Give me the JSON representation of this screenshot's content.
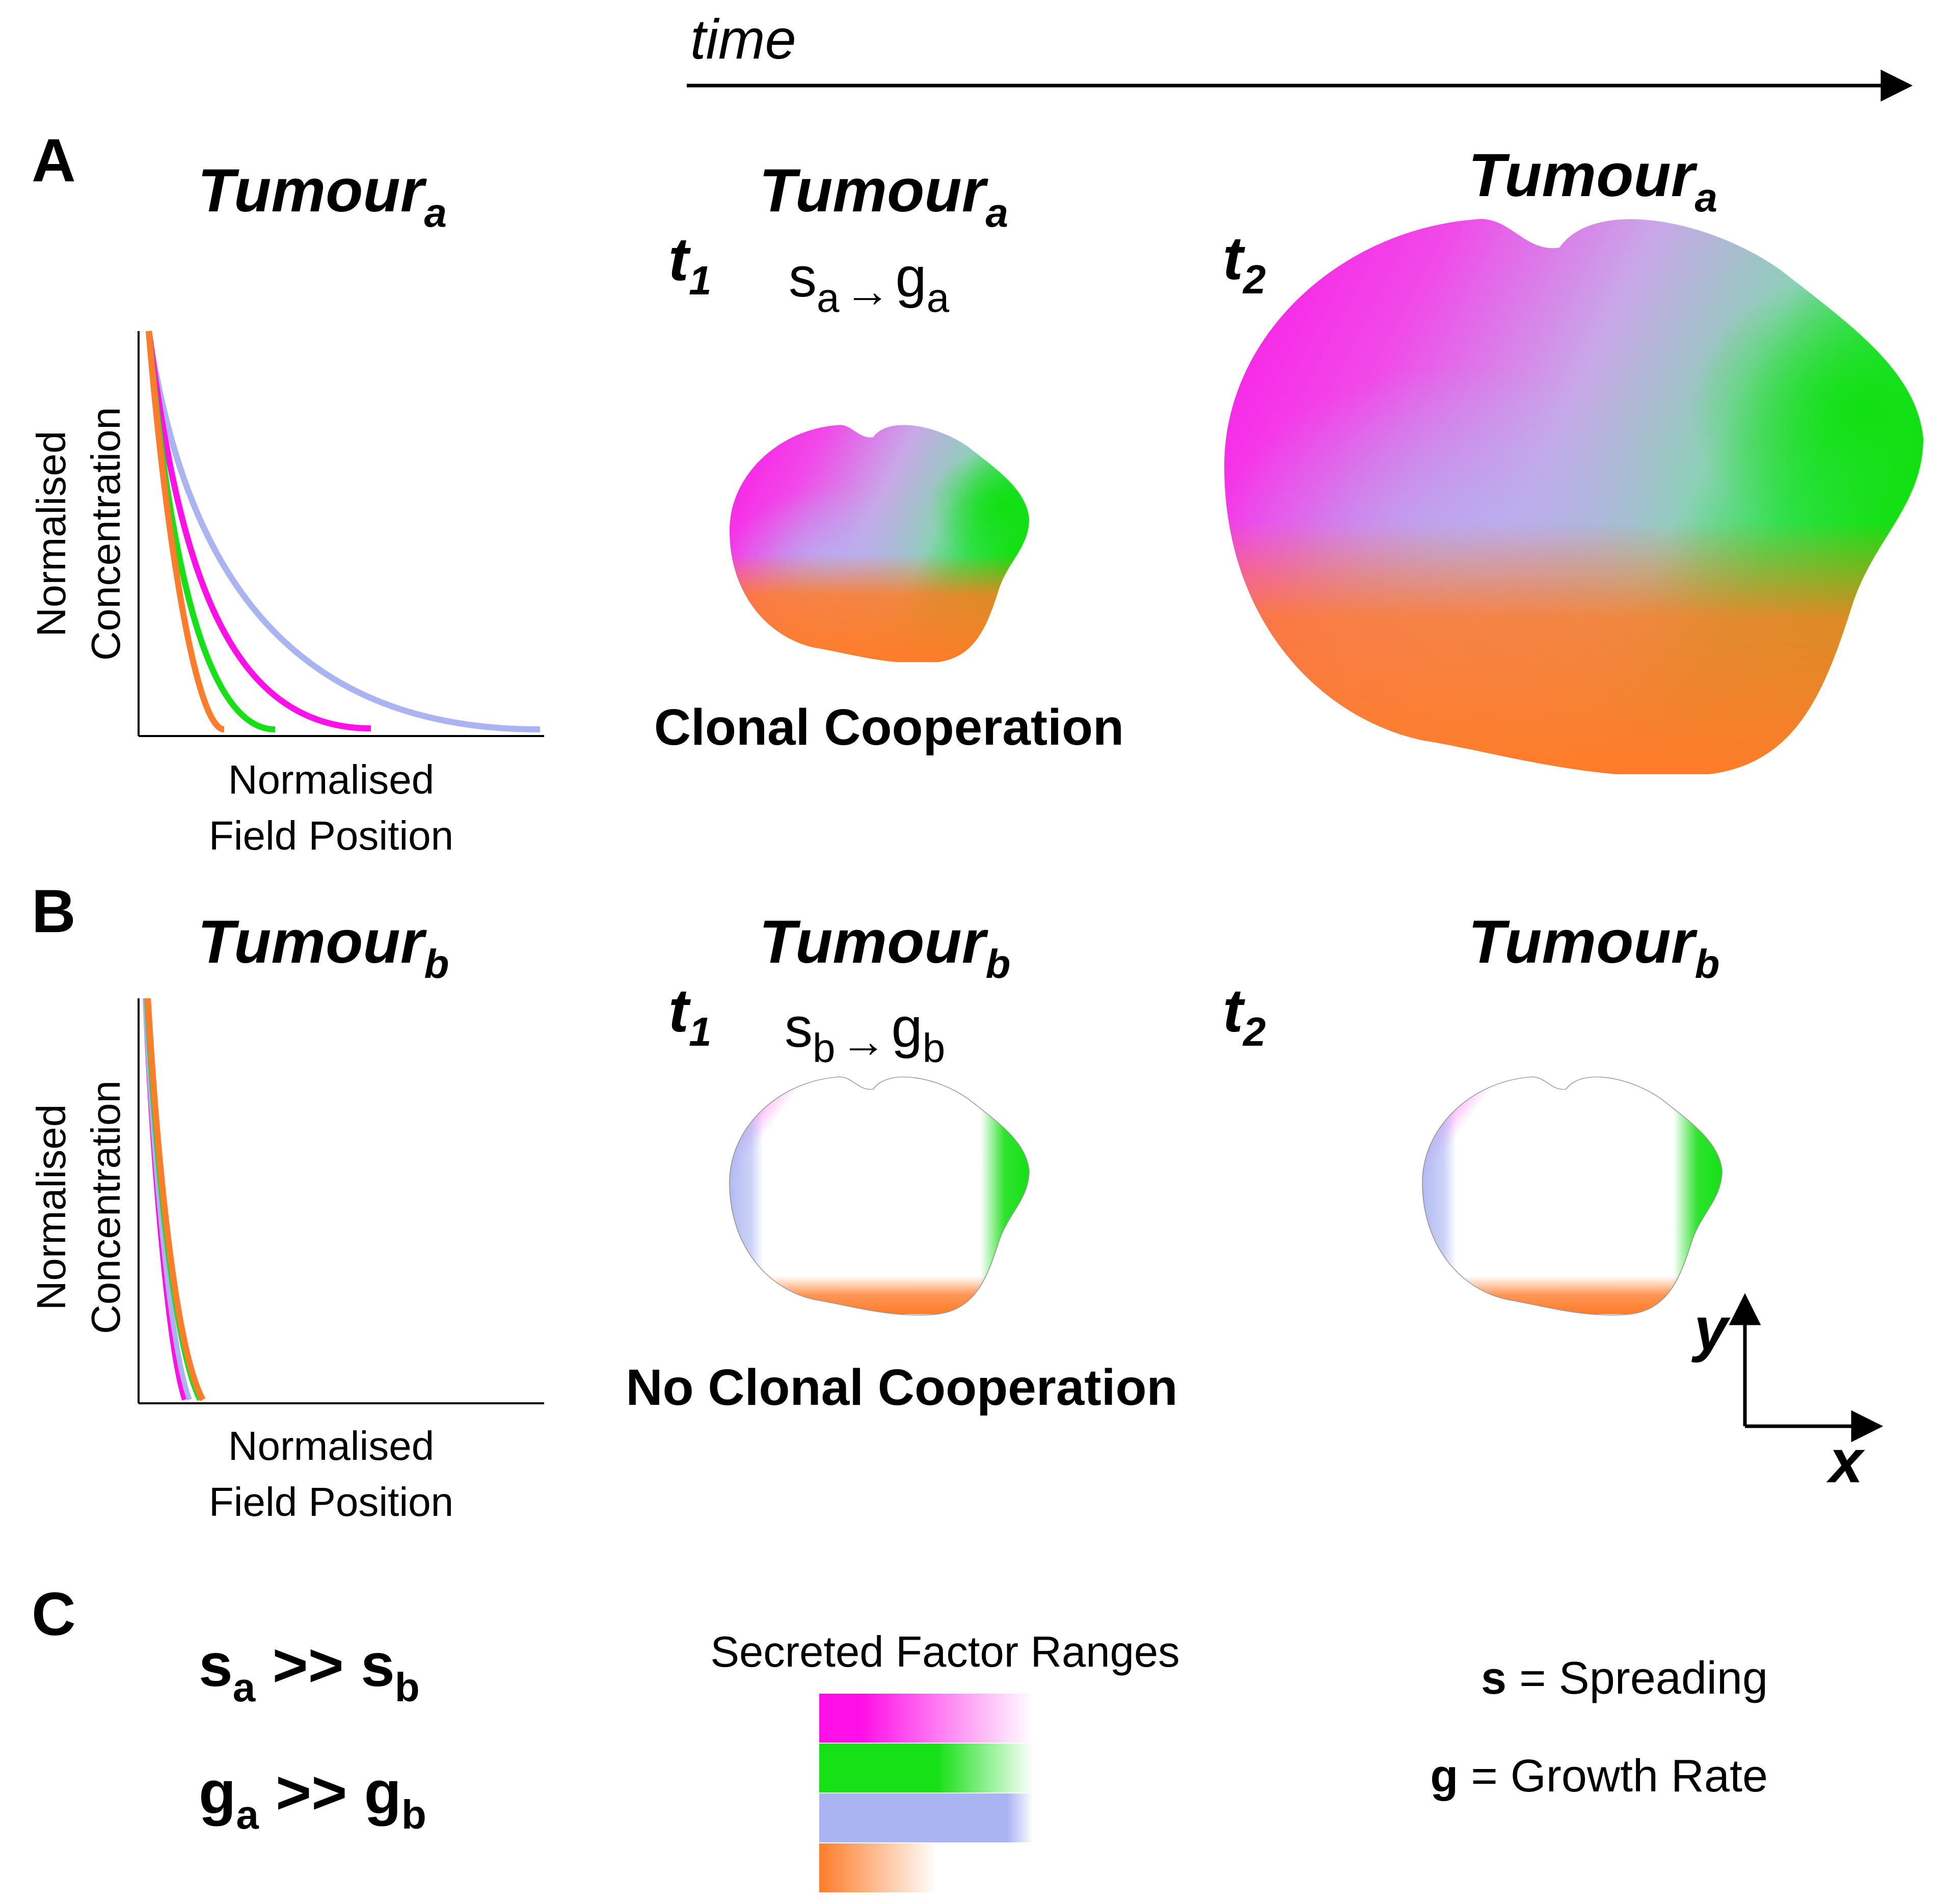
{
  "time_label": "time",
  "panel_a": {
    "letter": "A",
    "tumour_base": "Tumour",
    "subscript": "a",
    "t1": "t",
    "t1_sub": "1",
    "t2": "t",
    "t2_sub": "2",
    "s_base": "s",
    "s_sub": "a",
    "arrow": "→",
    "g_base": "g",
    "g_sub": "a",
    "caption": "Clonal Cooperation",
    "y_axis_line1": "Normalised",
    "y_axis_line2": "Concentration",
    "x_axis_line1": "Normalised",
    "x_axis_line2": "Field Position"
  },
  "panel_b": {
    "letter": "B",
    "tumour_base": "Tumour",
    "subscript": "b",
    "t1": "t",
    "t1_sub": "1",
    "t2": "t",
    "t2_sub": "2",
    "s_base": "s",
    "s_sub": "b",
    "arrow": "→",
    "g_base": "g",
    "g_sub": "b",
    "caption": "No Clonal Cooperation",
    "y_axis_line1": "Normalised",
    "y_axis_line2": "Concentration",
    "x_axis_line1": "Normalised",
    "x_axis_line2": "Field Position"
  },
  "panel_c": {
    "letter": "C",
    "rel1_left": "s",
    "rel1_left_sub": "a",
    "rel1_op": " >> ",
    "rel1_right": "s",
    "rel1_right_sub": "b",
    "rel2_left": "g",
    "rel2_left_sub": "a",
    "rel2_op": " >> ",
    "rel2_right": "g",
    "rel2_right_sub": "b",
    "ranges_title": "Secreted Factor Ranges",
    "legend_s_key": "s",
    "legend_s_text": " = Spreading",
    "legend_g_key": "g",
    "legend_g_text": " = Growth Rate"
  },
  "axes_labels": {
    "x": "x",
    "y": "y"
  },
  "colors": {
    "magenta": "#ff10e8",
    "green": "#16e016",
    "lavender": "#aab4f2",
    "orange": "#ff7c2a"
  }
}
